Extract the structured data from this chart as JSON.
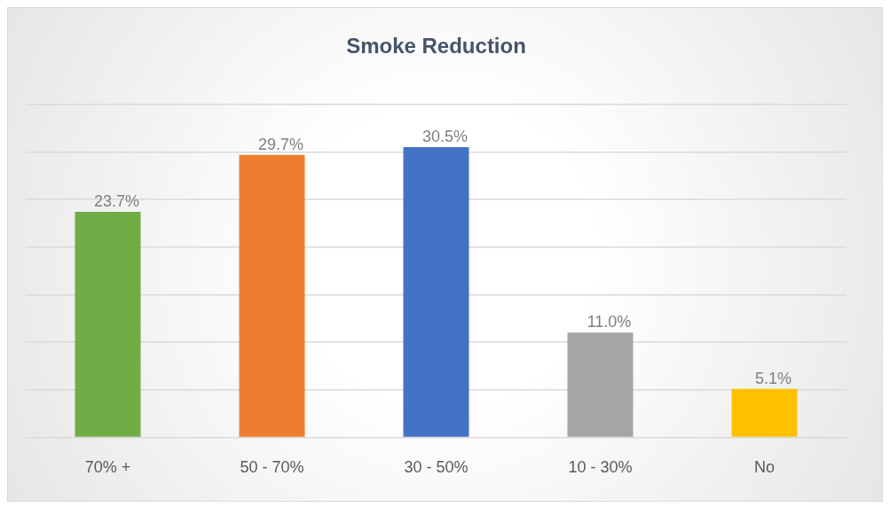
{
  "chart_data": {
    "type": "bar",
    "title": "Smoke Reduction",
    "categories": [
      "70% +",
      "50 - 70%",
      "30 - 50%",
      "10 - 30%",
      "No"
    ],
    "values": [
      23.7,
      29.7,
      30.5,
      11.0,
      5.1
    ],
    "colors": [
      "#70ad47",
      "#ed7d31",
      "#4472c4",
      "#a5a5a5",
      "#ffc000"
    ],
    "value_labels": [
      "23.7%",
      "29.7%",
      "30.5%",
      "11.0%",
      "5.1%"
    ],
    "ylim": [
      0,
      35
    ],
    "yticks": [
      {
        "value": 0,
        "label": null
      },
      {
        "value": 5,
        "label": null
      },
      {
        "value": 10,
        "label": null
      },
      {
        "value": 15,
        "label": null
      },
      {
        "value": 20,
        "label": null
      },
      {
        "value": 25,
        "label": null
      },
      {
        "value": 30,
        "label": null
      },
      {
        "value": 35,
        "label": null
      }
    ],
    "grid": "y",
    "tick_labels": "x",
    "legend": false
  }
}
